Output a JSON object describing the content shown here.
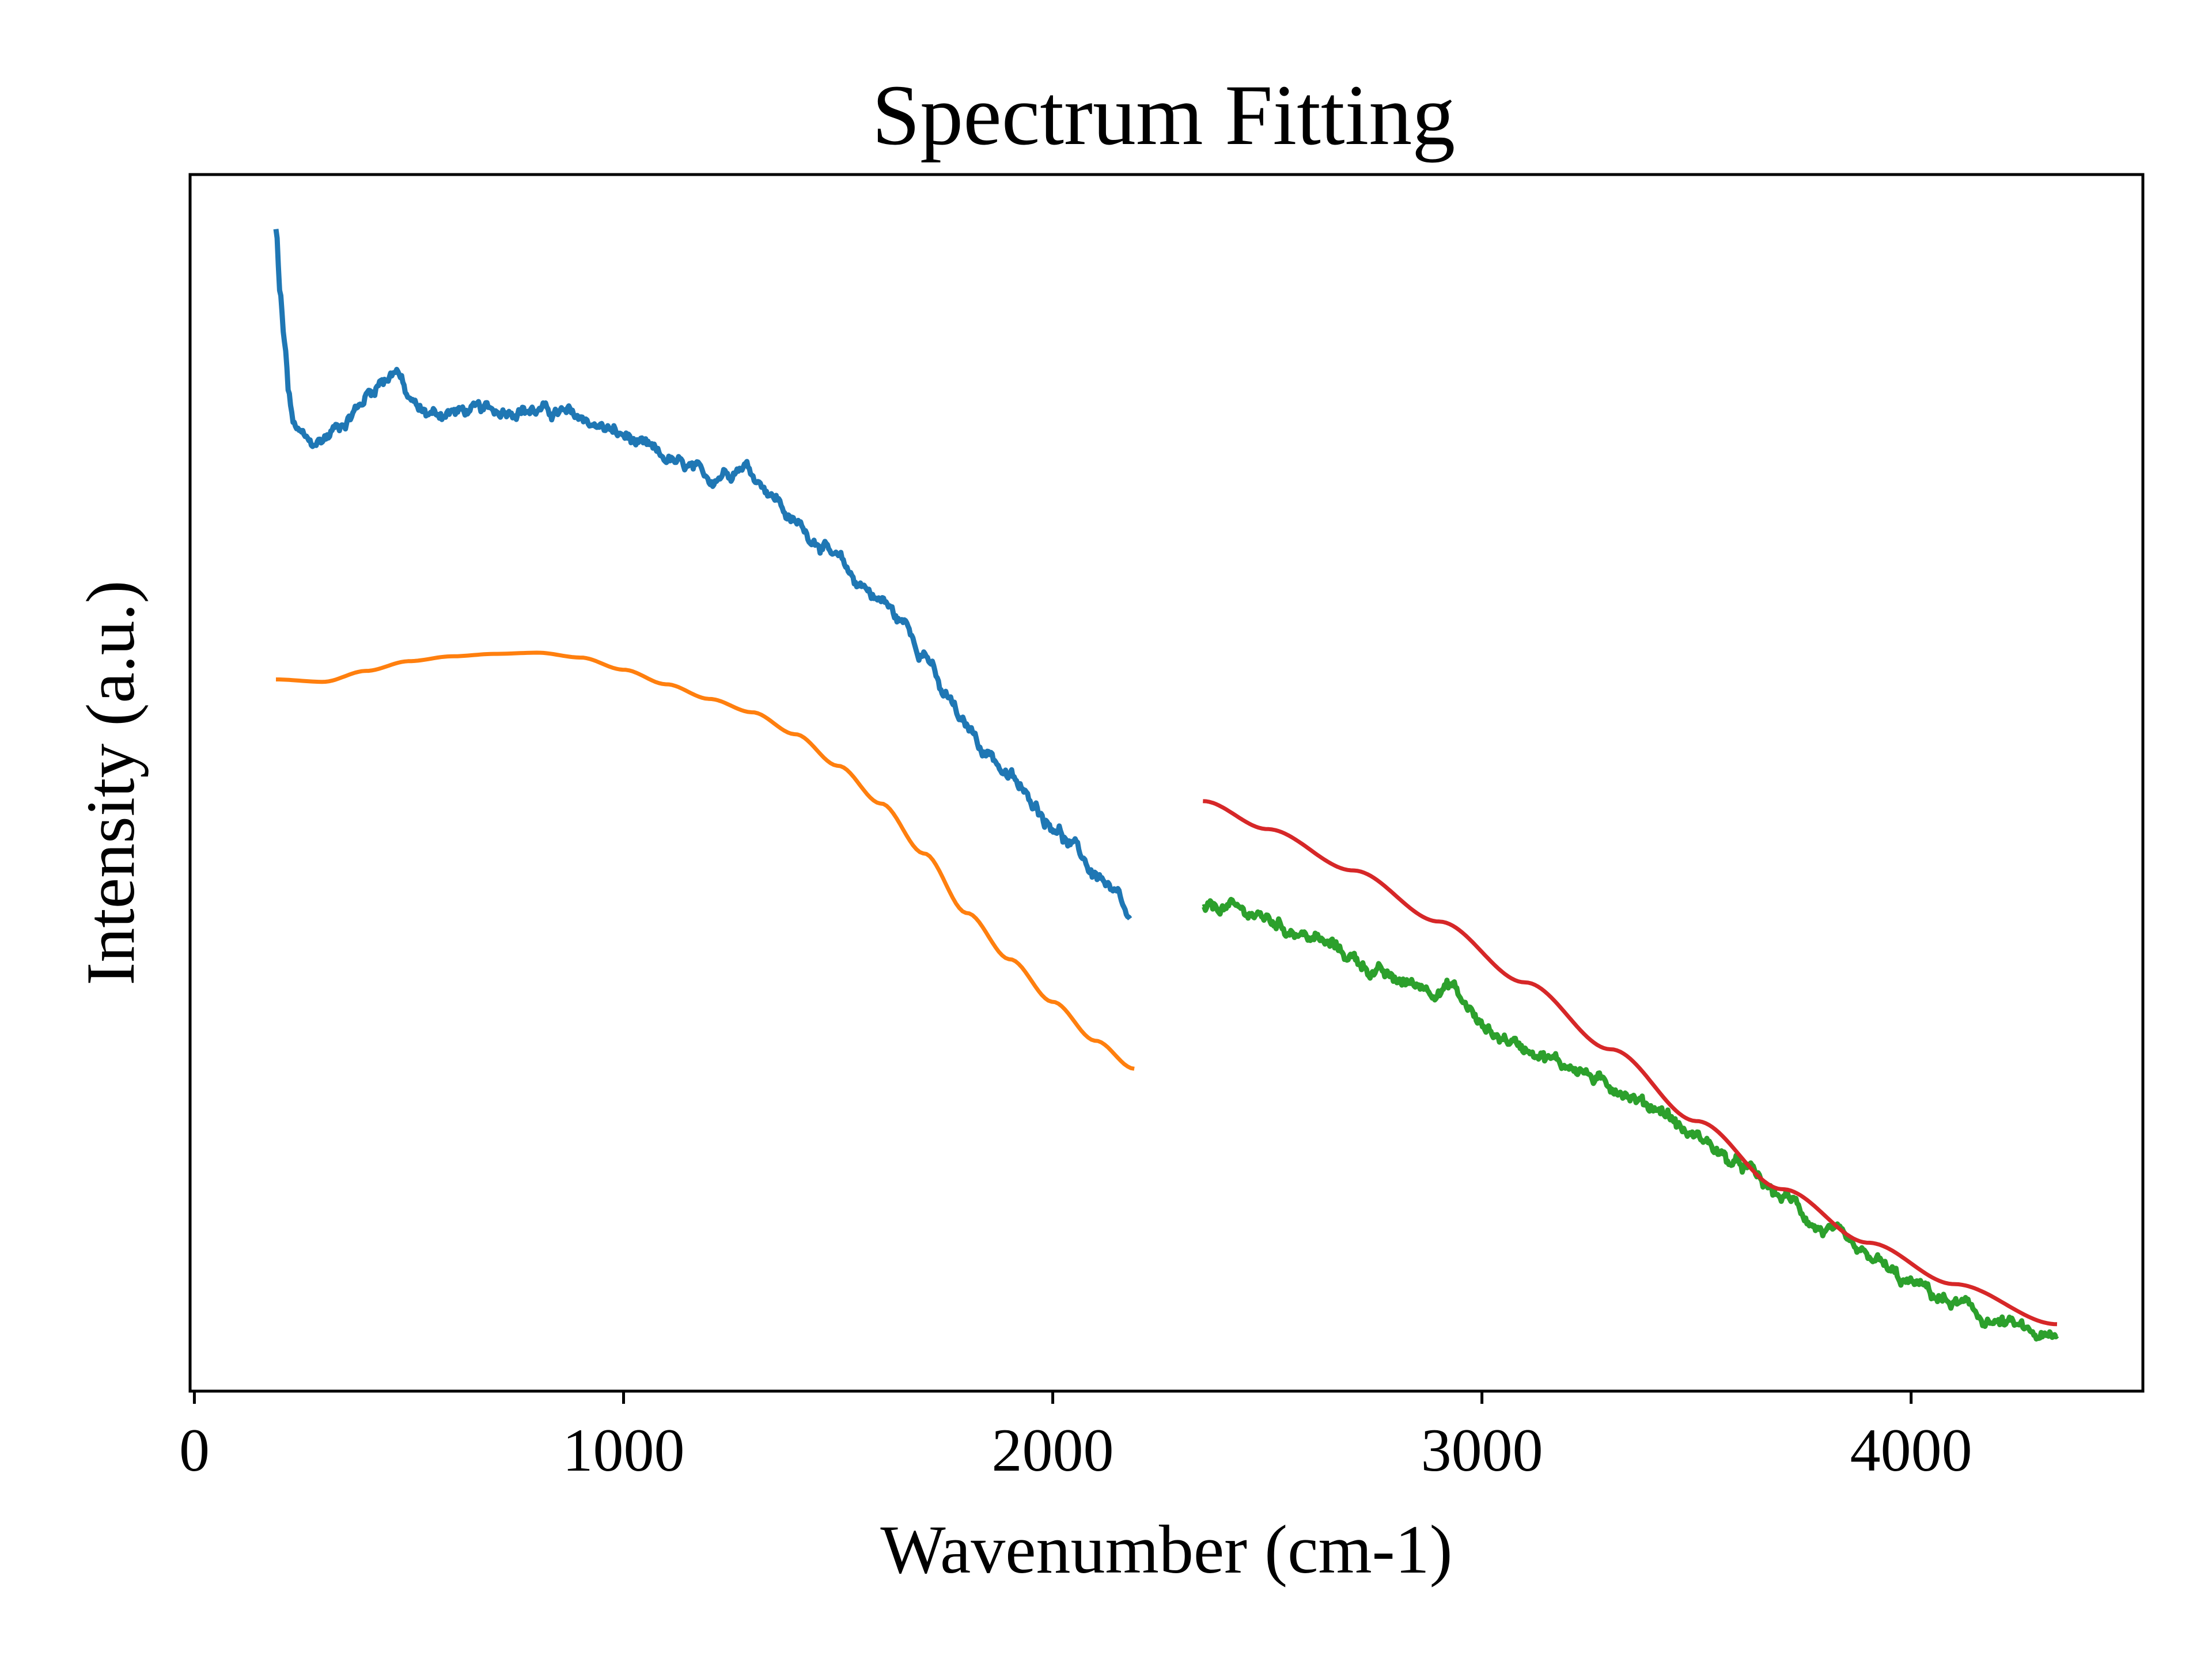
{
  "chart_data": {
    "type": "line",
    "title": "Spectrum Fitting",
    "xlabel": "Wavenumber (cm-1)",
    "ylabel": "Intensity (a.u.)",
    "xlim": [
      -10,
      4540
    ],
    "ylim": [
      0,
      1
    ],
    "x_ticks": [
      0,
      1000,
      2000,
      3000,
      4000
    ],
    "x_tick_labels": [
      "0",
      "1000",
      "2000",
      "3000",
      "4000"
    ],
    "y_ticks_shown": false,
    "grid": false,
    "legend": "none",
    "series": [
      {
        "color": "#1f77b4",
        "noisy": true,
        "x": [
          190,
          200,
          210,
          220,
          230,
          250,
          270,
          290,
          310,
          330,
          350,
          380,
          410,
          440,
          470,
          500,
          530,
          560,
          600,
          650,
          700,
          750,
          800,
          850,
          900,
          950,
          1000,
          1050,
          1100,
          1150,
          1200,
          1250,
          1280,
          1320,
          1350,
          1400,
          1450,
          1500,
          1550,
          1600,
          1650,
          1700,
          1750,
          1800,
          1850,
          1900,
          1950,
          2000,
          2050,
          2100,
          2150,
          2180
        ],
        "values": [
          0.955,
          0.9,
          0.86,
          0.82,
          0.795,
          0.785,
          0.778,
          0.78,
          0.785,
          0.792,
          0.798,
          0.808,
          0.822,
          0.832,
          0.84,
          0.815,
          0.805,
          0.803,
          0.805,
          0.806,
          0.806,
          0.808,
          0.806,
          0.804,
          0.8,
          0.792,
          0.785,
          0.775,
          0.766,
          0.758,
          0.75,
          0.758,
          0.762,
          0.748,
          0.735,
          0.713,
          0.7,
          0.682,
          0.664,
          0.65,
          0.632,
          0.608,
          0.57,
          0.545,
          0.525,
          0.504,
          0.485,
          0.466,
          0.446,
          0.425,
          0.405,
          0.385
        ]
      },
      {
        "color": "#ff7f0e",
        "noisy": false,
        "x": [
          190,
          300,
          400,
          500,
          600,
          700,
          800,
          900,
          1000,
          1100,
          1200,
          1300,
          1400,
          1500,
          1600,
          1700,
          1800,
          1900,
          2000,
          2100,
          2190
        ],
        "values": [
          0.585,
          0.583,
          0.592,
          0.6,
          0.604,
          0.606,
          0.607,
          0.603,
          0.593,
          0.581,
          0.569,
          0.558,
          0.54,
          0.514,
          0.483,
          0.442,
          0.393,
          0.355,
          0.32,
          0.288,
          0.265
        ]
      },
      {
        "color": "#2ca02c",
        "noisy": true,
        "x": [
          2350,
          2400,
          2450,
          2500,
          2550,
          2600,
          2650,
          2700,
          2750,
          2800,
          2850,
          2900,
          2930,
          2960,
          3000,
          3050,
          3100,
          3200,
          3300,
          3400,
          3500,
          3600,
          3700,
          3800,
          3900,
          4000,
          4100,
          4200,
          4340
        ],
        "values": [
          0.395,
          0.398,
          0.394,
          0.388,
          0.38,
          0.373,
          0.366,
          0.356,
          0.345,
          0.337,
          0.334,
          0.33,
          0.333,
          0.318,
          0.3,
          0.29,
          0.283,
          0.268,
          0.251,
          0.234,
          0.209,
          0.185,
          0.16,
          0.132,
          0.109,
          0.088,
          0.072,
          0.056,
          0.042
        ]
      },
      {
        "color": "#d62728",
        "noisy": false,
        "x": [
          2350,
          2500,
          2700,
          2900,
          3100,
          3300,
          3500,
          3700,
          3900,
          4100,
          4340
        ],
        "values": [
          0.485,
          0.462,
          0.428,
          0.386,
          0.336,
          0.281,
          0.222,
          0.166,
          0.122,
          0.088,
          0.055
        ]
      }
    ]
  }
}
